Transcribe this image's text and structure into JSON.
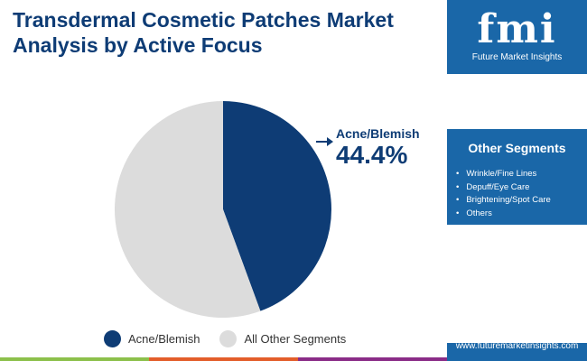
{
  "title": "Transdermal Cosmetic Patches Market Analysis by Active Focus",
  "brand": {
    "logo_text": "fmi",
    "name": "Future Market Insights",
    "url": "www.futuremarketinsights.com"
  },
  "other_segments": {
    "title": "Other Segments",
    "items": [
      "Wrinkle/Fine Lines",
      "Depuff/Eye Care",
      "Brightening/Spot Care",
      "Others"
    ]
  },
  "colors": {
    "primary": "#0e3c75",
    "other": "#dcdcdc",
    "panel": "#1a67a8",
    "bars": [
      "#8cc04b",
      "#e35d2a",
      "#8a2c87"
    ]
  },
  "chart_data": {
    "type": "pie",
    "title": "Transdermal Cosmetic Patches Market Analysis by Active Focus",
    "categories": [
      "Acne/Blemish",
      "All Other Segments"
    ],
    "values": [
      44.4,
      55.6
    ],
    "callout": {
      "label": "Acne/Blemish",
      "value": "44.4%"
    },
    "legend": [
      "Acne/Blemish",
      "All Other Segments"
    ],
    "legend_placement": "bottom"
  }
}
